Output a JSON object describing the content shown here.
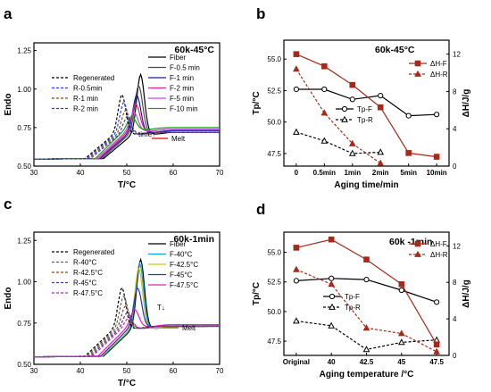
{
  "chart_data": [
    {
      "panel": "a",
      "type": "line",
      "title": "60k-45°C",
      "xlabel": "T/°C",
      "ylabel": "Endo",
      "xlim": [
        30,
        70
      ],
      "ylim": [
        0.5,
        1.3
      ],
      "xticks": [
        "30",
        "40",
        "50",
        "60",
        "70"
      ],
      "yticks": [
        "0.50",
        "0.75",
        "1.00",
        "1.25"
      ],
      "annotations": [
        "time↑",
        "Melt"
      ],
      "series": [
        {
          "name": "Fiber",
          "color": "#000000",
          "dash": "solid",
          "peak_x": 53,
          "peak_y": 1.09,
          "base_y": 0.72
        },
        {
          "name": "F-0.5 min",
          "color": "#4a4a4a",
          "dash": "solid",
          "peak_x": 52.6,
          "peak_y": 1.02,
          "base_y": 0.73
        },
        {
          "name": "F-1 min",
          "color": "#1a1aa6",
          "dash": "solid",
          "peak_x": 52.2,
          "peak_y": 0.96,
          "base_y": 0.73
        },
        {
          "name": "F-2 min",
          "color": "#e0208c",
          "dash": "solid",
          "peak_x": 52,
          "peak_y": 0.9,
          "base_y": 0.74
        },
        {
          "name": "F-5 min",
          "color": "#c050e0",
          "dash": "solid",
          "peak_x": 51.6,
          "peak_y": 0.85,
          "base_y": 0.74
        },
        {
          "name": "F-10 min",
          "color": "#1aa01a",
          "dash": "solid",
          "peak_x": 51.2,
          "peak_y": 0.82,
          "base_y": 0.75
        },
        {
          "name": "Regenerated",
          "color": "#000000",
          "dash": "dash",
          "peak_x": 49,
          "peak_y": 0.96,
          "base_y": 0.72
        },
        {
          "name": "R-0.5min",
          "color": "#2040ff",
          "dash": "dash",
          "peak_x": 49.4,
          "peak_y": 0.91,
          "base_y": 0.72
        },
        {
          "name": "R-1 min",
          "color": "#8a4a20",
          "dash": "dash",
          "peak_x": 49.8,
          "peak_y": 0.86,
          "base_y": 0.72
        },
        {
          "name": "R-2 min",
          "color": "#3a3ab0",
          "dash": "dash",
          "peak_x": 50.2,
          "peak_y": 0.82,
          "base_y": 0.72
        }
      ]
    },
    {
      "panel": "b",
      "type": "line",
      "title": "60k-45°C",
      "xlabel": "Aging time/min",
      "ylabel": "Tp/°C",
      "y2label": "ΔH/J/g",
      "categories": [
        "0",
        "0.5min",
        "1min",
        "2min",
        "5min",
        "10min"
      ],
      "ylim": [
        46.5,
        56.5
      ],
      "yticks": [
        "47.5",
        "50.0",
        "52.5",
        "55.0"
      ],
      "y2lim": [
        0,
        13.5
      ],
      "y2ticks": [
        "0",
        "4",
        "8",
        "12"
      ],
      "series": [
        {
          "name": "Tp-F",
          "axis": "left",
          "color": "#000000",
          "dash": "solid",
          "marker": "circle-open",
          "values": [
            52.6,
            52.6,
            51.8,
            52.1,
            50.5,
            50.6
          ]
        },
        {
          "name": "Tp-R",
          "axis": "left",
          "color": "#000000",
          "dash": "dash",
          "marker": "triangle-open",
          "values": [
            49.2,
            48.5,
            47.5,
            47.6,
            null,
            null
          ]
        },
        {
          "name": "ΔH-F",
          "axis": "right",
          "color": "#a52a1a",
          "dash": "solid",
          "marker": "square",
          "values": [
            12,
            10.7,
            8.7,
            6.3,
            1.4,
            1.0
          ]
        },
        {
          "name": "ΔH-R",
          "axis": "right",
          "color": "#a52a1a",
          "dash": "dash",
          "marker": "triangle",
          "values": [
            10.4,
            5.7,
            2.4,
            0.3,
            null,
            null
          ]
        }
      ]
    },
    {
      "panel": "c",
      "type": "line",
      "title": "60k-1min",
      "xlabel": "T/°C",
      "ylabel": "Endo",
      "xlim": [
        30,
        70
      ],
      "ylim": [
        0.5,
        1.3
      ],
      "xticks": [
        "30",
        "40",
        "50",
        "60",
        "70"
      ],
      "yticks": [
        "0.50",
        "0.75",
        "1.00",
        "1.25"
      ],
      "annotations": [
        "T↓",
        "Melt"
      ],
      "series": [
        {
          "name": "Fiber",
          "color": "#000000",
          "dash": "solid",
          "peak_x": 53,
          "peak_y": 1.13,
          "base_y": 0.73
        },
        {
          "name": "F-40°C",
          "color": "#00a8d0",
          "dash": "solid",
          "peak_x": 52.8,
          "peak_y": 1.11,
          "base_y": 0.73
        },
        {
          "name": "F-42.5°C",
          "color": "#d0c020",
          "dash": "solid",
          "peak_x": 52.6,
          "peak_y": 1.08,
          "base_y": 0.73
        },
        {
          "name": "F-45°C",
          "color": "#3030c0",
          "dash": "solid",
          "peak_x": 52.4,
          "peak_y": 0.96,
          "base_y": 0.74
        },
        {
          "name": "F-47.5°C",
          "color": "#e020c0",
          "dash": "solid",
          "peak_x": 51.8,
          "peak_y": 0.83,
          "base_y": 0.74
        },
        {
          "name": "Regenerated",
          "color": "#000000",
          "dash": "dash",
          "peak_x": 49,
          "peak_y": 0.96,
          "base_y": 0.73
        },
        {
          "name": "R-40°C",
          "color": "#606060",
          "dash": "dash",
          "peak_x": 49.4,
          "peak_y": 0.91,
          "base_y": 0.73
        },
        {
          "name": "R-42.5°C",
          "color": "#8a4a20",
          "dash": "dash",
          "peak_x": 49.8,
          "peak_y": 0.85,
          "base_y": 0.73
        },
        {
          "name": "R-45°C",
          "color": "#3a3ab0",
          "dash": "dash",
          "peak_x": 50.2,
          "peak_y": 0.81,
          "base_y": 0.73
        },
        {
          "name": "R-47.5°C",
          "color": "#c020c0",
          "dash": "dash",
          "peak_x": 50.6,
          "peak_y": 0.78,
          "base_y": 0.73
        }
      ]
    },
    {
      "panel": "d",
      "type": "line",
      "title": "60k -1min",
      "xlabel": "Aging temperature /°C",
      "ylabel": "Tp/°C",
      "y2label": "ΔH/J/g",
      "categories": [
        "Original",
        "40",
        "42.5",
        "45",
        "47.5"
      ],
      "ylim": [
        46.3,
        56.7
      ],
      "yticks": [
        "47.5",
        "50.0",
        "52.5",
        "55.0"
      ],
      "y2lim": [
        0,
        13.5
      ],
      "y2ticks": [
        "0",
        "4",
        "8",
        "12"
      ],
      "series": [
        {
          "name": "Tp-F",
          "axis": "left",
          "color": "#000000",
          "dash": "solid",
          "marker": "circle-open",
          "values": [
            52.6,
            52.8,
            52.7,
            51.8,
            50.8
          ]
        },
        {
          "name": "Tp-R",
          "axis": "left",
          "color": "#000000",
          "dash": "dash",
          "marker": "triangle-open",
          "values": [
            49.2,
            48.8,
            46.8,
            47.4,
            47.6
          ]
        },
        {
          "name": "ΔH-F",
          "axis": "right",
          "color": "#a52a1a",
          "dash": "solid",
          "marker": "square",
          "values": [
            11.8,
            12.7,
            10.5,
            7.8,
            1.2
          ]
        },
        {
          "name": "ΔH-R",
          "axis": "right",
          "color": "#a52a1a",
          "dash": "dash",
          "marker": "triangle",
          "values": [
            9.4,
            7.8,
            3.0,
            2.4,
            0.4
          ]
        }
      ]
    }
  ]
}
